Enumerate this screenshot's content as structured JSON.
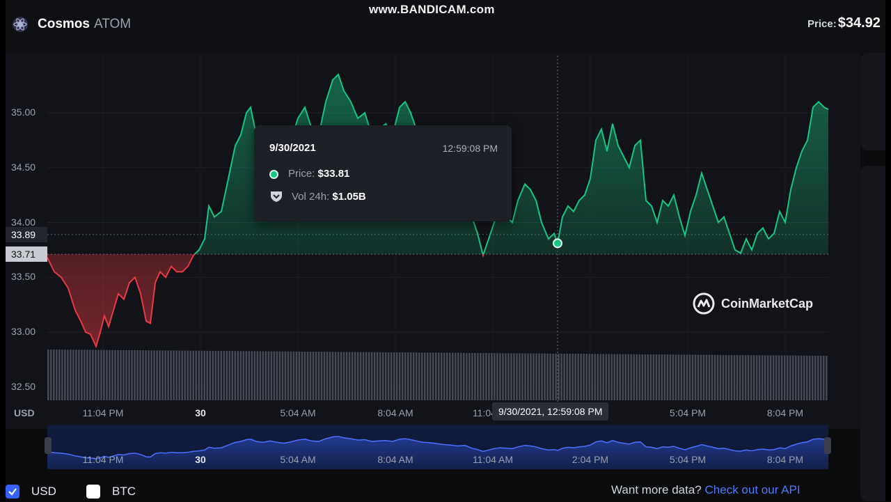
{
  "watermark": "www.BANDICAM.com",
  "header": {
    "name": "Cosmos",
    "symbol": "ATOM",
    "price_label": "Price:",
    "price_value": "$34.92"
  },
  "tooltip": {
    "date": "9/30/2021",
    "time": "12:59:08 PM",
    "price_label": "Price:",
    "price_value": "$33.81",
    "vol_label": "Vol 24h:",
    "vol_value": "$1.05B"
  },
  "crosshair": {
    "x_label": "9/30/2021, 12:59:08 PM",
    "price_current": "33.89",
    "price_open": "33.71"
  },
  "watermark_brand": "CoinMarketCap",
  "axis_unit": "USD",
  "navigator_labels": [
    "11:04 PM",
    "30",
    "5:04 AM",
    "8:04 AM",
    "11:04 AM",
    "2:04 PM",
    "5:04 PM",
    "8:04 PM"
  ],
  "footer": {
    "usd_label": "USD",
    "btc_label": "BTC",
    "more_text": "Want more data?",
    "more_link": "Check out our API"
  },
  "colors": {
    "up": "#16c784",
    "down": "#ea3943",
    "accent": "#3861fb"
  },
  "chart_data": {
    "type": "area",
    "xlabel": "",
    "ylabel": "",
    "yticks": [
      "35.00",
      "34.50",
      "34.00",
      "33.50",
      "33.00",
      "32.50"
    ],
    "ylim": [
      32.45,
      35.55
    ],
    "xticks": [
      {
        "t": 80,
        "label": "11:04 PM"
      },
      {
        "t": 220,
        "label": "30"
      },
      {
        "t": 360,
        "label": "5:04 AM"
      },
      {
        "t": 500,
        "label": "8:04 AM"
      },
      {
        "t": 640,
        "label": "11:04 AM"
      },
      {
        "t": 780,
        "label": "2:04 PM"
      },
      {
        "t": 920,
        "label": "5:04 PM"
      },
      {
        "t": 1060,
        "label": "8:04 PM"
      }
    ],
    "baseline": 33.71,
    "grid": true,
    "series": [
      {
        "name": "",
        "points": [
          [
            0,
            33.68
          ],
          [
            10,
            33.55
          ],
          [
            20,
            33.5
          ],
          [
            30,
            33.4
          ],
          [
            40,
            33.2
          ],
          [
            48,
            33.1
          ],
          [
            55,
            33.0
          ],
          [
            62,
            32.98
          ],
          [
            70,
            32.87
          ],
          [
            76,
            33.0
          ],
          [
            82,
            33.15
          ],
          [
            88,
            33.05
          ],
          [
            95,
            33.2
          ],
          [
            102,
            33.35
          ],
          [
            110,
            33.3
          ],
          [
            118,
            33.45
          ],
          [
            126,
            33.5
          ],
          [
            134,
            33.35
          ],
          [
            142,
            33.1
          ],
          [
            148,
            33.08
          ],
          [
            155,
            33.45
          ],
          [
            162,
            33.55
          ],
          [
            170,
            33.5
          ],
          [
            178,
            33.6
          ],
          [
            186,
            33.55
          ],
          [
            194,
            33.55
          ],
          [
            202,
            33.6
          ],
          [
            210,
            33.7
          ],
          [
            218,
            33.75
          ],
          [
            226,
            33.85
          ],
          [
            232,
            34.15
          ],
          [
            240,
            34.05
          ],
          [
            250,
            34.1
          ],
          [
            260,
            34.4
          ],
          [
            270,
            34.7
          ],
          [
            278,
            34.8
          ],
          [
            286,
            35.0
          ],
          [
            292,
            35.05
          ],
          [
            300,
            34.8
          ],
          [
            310,
            34.7
          ],
          [
            320,
            34.85
          ],
          [
            330,
            34.7
          ],
          [
            340,
            34.6
          ],
          [
            350,
            34.75
          ],
          [
            360,
            34.95
          ],
          [
            370,
            35.05
          ],
          [
            380,
            34.85
          ],
          [
            390,
            34.8
          ],
          [
            400,
            35.1
          ],
          [
            410,
            35.3
          ],
          [
            418,
            35.35
          ],
          [
            426,
            35.2
          ],
          [
            436,
            35.1
          ],
          [
            446,
            34.95
          ],
          [
            456,
            35.0
          ],
          [
            466,
            34.8
          ],
          [
            476,
            34.85
          ],
          [
            486,
            34.9
          ],
          [
            496,
            34.8
          ],
          [
            506,
            35.05
          ],
          [
            514,
            35.1
          ],
          [
            522,
            35.0
          ],
          [
            530,
            34.85
          ],
          [
            540,
            34.7
          ],
          [
            550,
            34.65
          ],
          [
            560,
            34.55
          ],
          [
            570,
            34.45
          ],
          [
            580,
            34.4
          ],
          [
            590,
            34.3
          ],
          [
            600,
            34.35
          ],
          [
            610,
            34.05
          ],
          [
            618,
            33.9
          ],
          [
            626,
            33.7
          ],
          [
            634,
            33.85
          ],
          [
            642,
            34.0
          ],
          [
            650,
            34.1
          ],
          [
            660,
            34.05
          ],
          [
            668,
            34.0
          ],
          [
            676,
            34.2
          ],
          [
            686,
            34.35
          ],
          [
            694,
            34.3
          ],
          [
            702,
            34.2
          ],
          [
            710,
            34.0
          ],
          [
            720,
            33.85
          ],
          [
            728,
            33.9
          ],
          [
            733,
            33.81
          ],
          [
            740,
            34.05
          ],
          [
            748,
            34.15
          ],
          [
            756,
            34.1
          ],
          [
            764,
            34.2
          ],
          [
            772,
            34.25
          ],
          [
            780,
            34.4
          ],
          [
            788,
            34.75
          ],
          [
            796,
            34.85
          ],
          [
            804,
            34.65
          ],
          [
            812,
            34.9
          ],
          [
            820,
            34.7
          ],
          [
            828,
            34.6
          ],
          [
            836,
            34.5
          ],
          [
            844,
            34.7
          ],
          [
            852,
            34.75
          ],
          [
            860,
            34.2
          ],
          [
            868,
            34.15
          ],
          [
            876,
            34.0
          ],
          [
            884,
            34.2
          ],
          [
            892,
            34.15
          ],
          [
            900,
            34.25
          ],
          [
            908,
            34.05
          ],
          [
            916,
            33.88
          ],
          [
            924,
            34.1
          ],
          [
            932,
            34.25
          ],
          [
            940,
            34.45
          ],
          [
            948,
            34.3
          ],
          [
            956,
            34.15
          ],
          [
            964,
            34.0
          ],
          [
            972,
            34.05
          ],
          [
            980,
            33.9
          ],
          [
            988,
            33.75
          ],
          [
            996,
            33.72
          ],
          [
            1004,
            33.85
          ],
          [
            1012,
            33.75
          ],
          [
            1020,
            33.9
          ],
          [
            1028,
            33.95
          ],
          [
            1036,
            33.85
          ],
          [
            1044,
            33.9
          ],
          [
            1052,
            34.1
          ],
          [
            1060,
            34.0
          ],
          [
            1068,
            34.3
          ],
          [
            1076,
            34.5
          ],
          [
            1084,
            34.65
          ],
          [
            1092,
            34.75
          ],
          [
            1100,
            35.05
          ],
          [
            1108,
            35.1
          ],
          [
            1116,
            35.05
          ],
          [
            1122,
            35.03
          ]
        ]
      }
    ],
    "volume": {
      "name": "Vol 24h"
    }
  }
}
